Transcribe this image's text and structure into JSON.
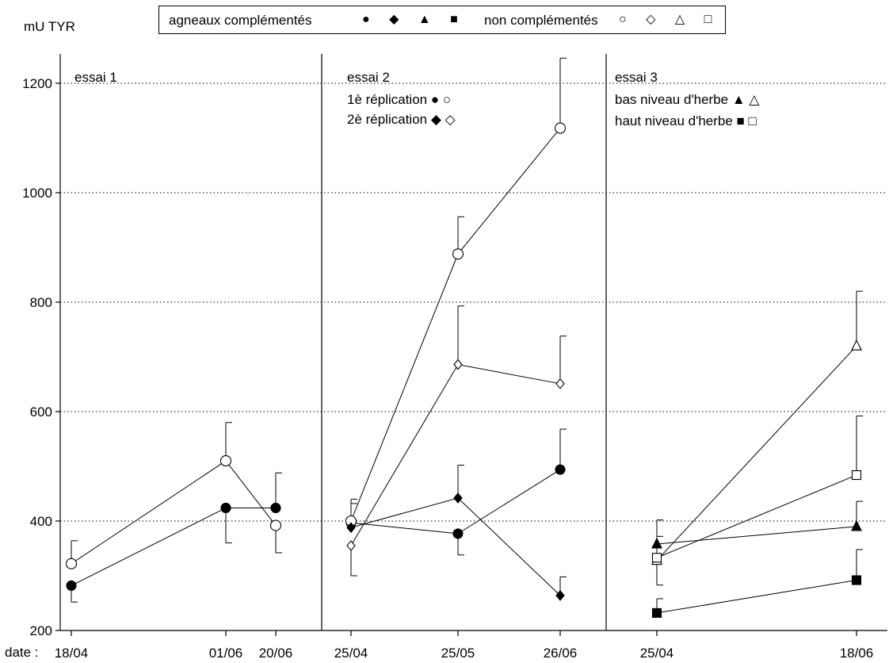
{
  "y_axis_label": "mU TYR",
  "x_axis_prefix": "date :",
  "legend": {
    "supplemented": {
      "label": "agneaux complémentés",
      "symbols": "● ◆ ▲ ■"
    },
    "non_supplemented": {
      "label": "non complémentés",
      "symbols": "○ ◇ △ □"
    }
  },
  "chart_data": {
    "type": "line",
    "ylim": [
      200,
      1250
    ],
    "yticks": [
      200,
      400,
      600,
      800,
      1000,
      1200
    ],
    "grid": "horizontal dotted",
    "panels": [
      {
        "title": "essai 1",
        "x_labels": [
          "18/04",
          "01/06",
          "20/06"
        ],
        "panel_legend": [],
        "series": [
          {
            "group": "supplemented",
            "marker": "circle",
            "filled": true,
            "y": [
              282,
              424,
              424
            ],
            "error_up": [
              null,
              null,
              488
            ],
            "error_down": [
              252,
              360,
              null
            ]
          },
          {
            "group": "non_supplemented",
            "marker": "circle",
            "filled": false,
            "y": [
              322,
              510,
              392
            ],
            "error_up": [
              364,
              580,
              null
            ],
            "error_down": [
              null,
              null,
              342
            ]
          }
        ]
      },
      {
        "title": "essai 2",
        "x_labels": [
          "25/04",
          "25/05",
          "26/06"
        ],
        "panel_legend": [
          {
            "label": "1è réplication",
            "symbols": "● ○"
          },
          {
            "label": "2è réplication",
            "symbols": "◆ ◇"
          }
        ],
        "series": [
          {
            "group": "supplemented",
            "marker": "circle",
            "filled": true,
            "replication": "1è réplication",
            "y": [
              397,
              377,
              494
            ],
            "error_up": [
              432,
              null,
              568
            ],
            "error_down": [
              null,
              338,
              null
            ]
          },
          {
            "group": "non_supplemented",
            "marker": "circle",
            "filled": false,
            "replication": "1è réplication",
            "y": [
              400,
              888,
              1118
            ],
            "error_up": [
              440,
              956,
              1246
            ],
            "error_down": [
              null,
              null,
              null
            ]
          },
          {
            "group": "supplemented",
            "marker": "diamond",
            "filled": true,
            "replication": "2è réplication",
            "y": [
              388,
              442,
              264
            ],
            "error_up": [
              null,
              502,
              298
            ],
            "error_down": [
              null,
              null,
              null
            ]
          },
          {
            "group": "non_supplemented",
            "marker": "diamond",
            "filled": false,
            "replication": "2è réplication",
            "y": [
              355,
              686,
              651
            ],
            "error_up": [
              null,
              793,
              738
            ],
            "error_down": [
              300,
              null,
              null
            ]
          }
        ]
      },
      {
        "title": "essai 3",
        "x_labels": [
          "25/04",
          "18/06"
        ],
        "panel_legend": [
          {
            "label": "bas niveau d'herbe",
            "symbols": "▲ △"
          },
          {
            "label": "haut niveau d'herbe",
            "symbols": "■ □"
          }
        ],
        "series": [
          {
            "group": "supplemented",
            "marker": "triangle",
            "filled": true,
            "grass": "bas niveau d'herbe",
            "y": [
              358,
              390
            ],
            "error_up": [
              402,
              436
            ],
            "error_down": [
              null,
              null
            ]
          },
          {
            "group": "non_supplemented",
            "marker": "triangle",
            "filled": false,
            "grass": "bas niveau d'herbe",
            "y": [
              328,
              720
            ],
            "error_up": [
              null,
              820
            ],
            "error_down": [
              283,
              null
            ]
          },
          {
            "group": "supplemented",
            "marker": "square",
            "filled": true,
            "grass": "haut niveau d'herbe",
            "y": [
              232,
              292
            ],
            "error_up": [
              258,
              348
            ],
            "error_down": [
              null,
              null
            ]
          },
          {
            "group": "non_supplemented",
            "marker": "square",
            "filled": false,
            "grass": "haut niveau d'herbe",
            "y": [
              333,
              484
            ],
            "error_up": [
              372,
              592
            ],
            "error_down": [
              null,
              null
            ]
          }
        ]
      }
    ]
  }
}
